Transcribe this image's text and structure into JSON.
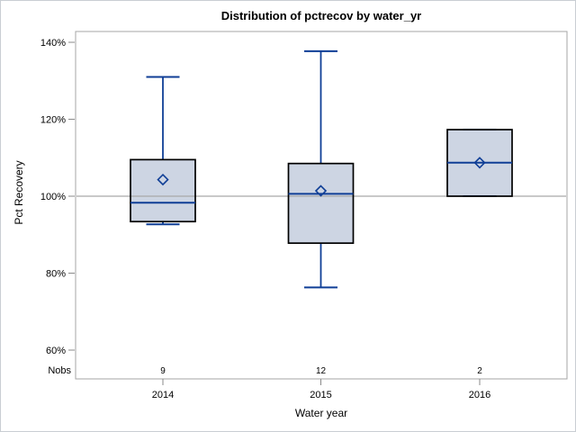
{
  "chart_data": {
    "type": "boxplot",
    "title": "Distribution of pctrecov by water_yr",
    "xlabel": "Water year",
    "ylabel": "Pct Recovery",
    "nobs_label": "Nobs",
    "categories": [
      "2014",
      "2015",
      "2016"
    ],
    "y_ticks": [
      {
        "value": 140,
        "label": "140%"
      },
      {
        "value": 120,
        "label": "120%"
      },
      {
        "value": 100,
        "label": "100%"
      },
      {
        "value": 80,
        "label": "80%"
      },
      {
        "value": 60,
        "label": "60%"
      }
    ],
    "ylim": [
      52.5,
      142.8
    ],
    "reference_line_value": 100,
    "grid": false,
    "legend": "none",
    "series": [
      {
        "category": "2014",
        "nobs": "9",
        "min": 92.7,
        "q1": 93.4,
        "median": 98.3,
        "mean": 104.3,
        "q3": 109.5,
        "max": 131.0
      },
      {
        "category": "2015",
        "nobs": "12",
        "min": 76.3,
        "q1": 87.8,
        "median": 100.6,
        "mean": 101.4,
        "q3": 108.5,
        "max": 137.7
      },
      {
        "category": "2016",
        "nobs": "2",
        "min": 100.0,
        "q1": 100.0,
        "median": 108.7,
        "mean": 108.7,
        "q3": 117.3,
        "max": 117.3
      }
    ],
    "colors": {
      "box_fill": "#cdd5e3",
      "box_border": "#000000",
      "whisker": "#0f3e96",
      "axis": "#a6a6a6",
      "tick": "#8a8a8a",
      "reference_line": "#a9a9a9",
      "text": "#000000",
      "frame": "#c9ced3",
      "background": "#ffffff"
    }
  }
}
